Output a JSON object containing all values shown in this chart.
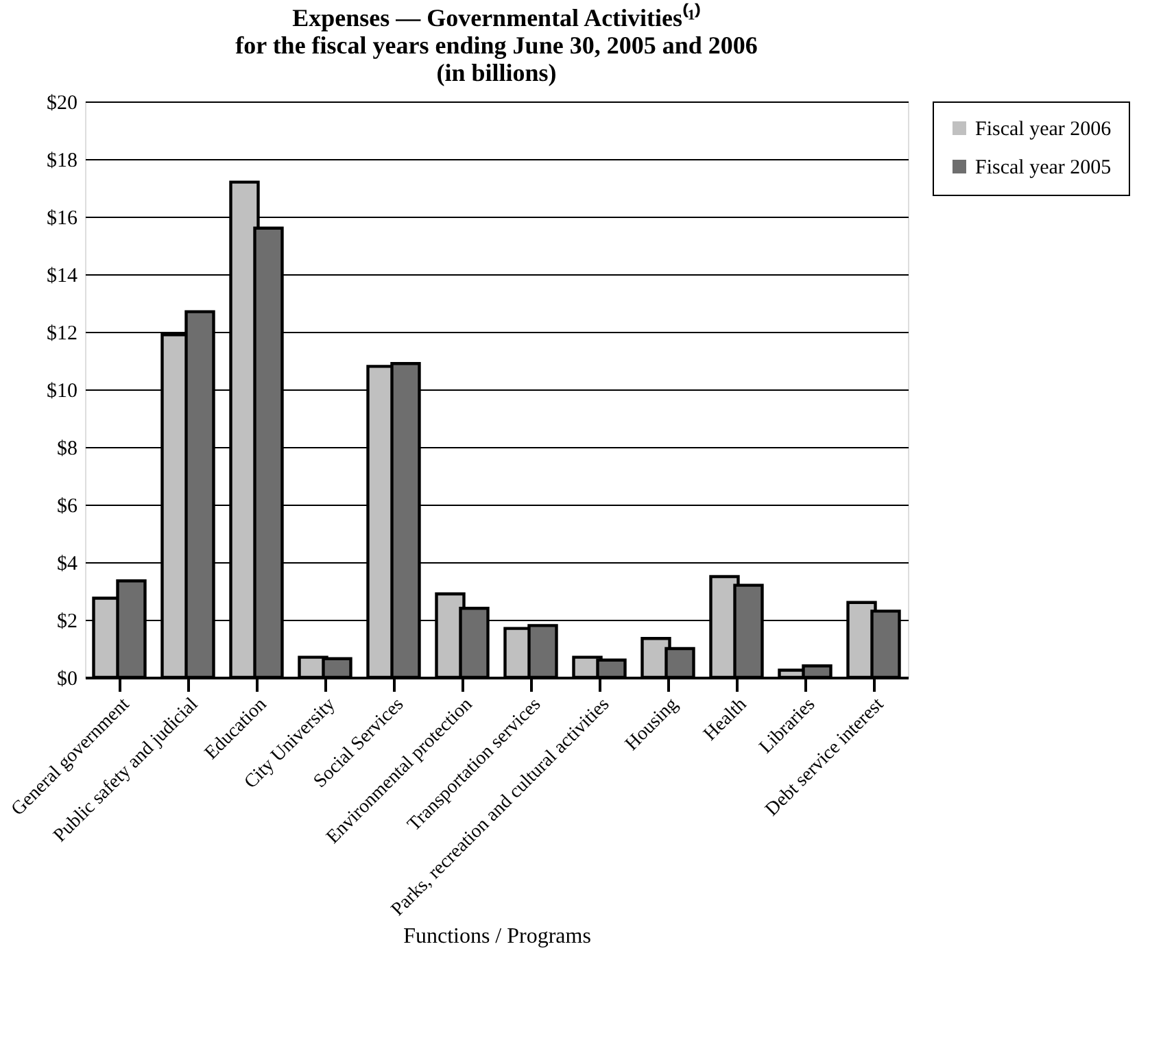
{
  "chart_data": {
    "type": "bar",
    "title": [
      "Expenses — Governmental Activities⁽¹⁾",
      "for the fiscal years ending June 30, 2005 and 2006",
      "(in billions)"
    ],
    "xlabel": "Functions / Programs",
    "categories": [
      "General government",
      "Public safety and judicial",
      "Education",
      "City University",
      "Social Services",
      "Environmental protection",
      "Transportation services",
      "Parks, recreation and cultural activities",
      "Housing",
      "Health",
      "Libraries",
      "Debt service interest"
    ],
    "series": [
      {
        "name": "Fiscal year 2006",
        "color": "#c0c0c0",
        "values": [
          2.75,
          11.9,
          17.2,
          0.7,
          10.8,
          2.9,
          1.7,
          0.7,
          1.35,
          3.5,
          0.25,
          2.6
        ]
      },
      {
        "name": "Fiscal year 2005",
        "color": "#6e6e6e",
        "values": [
          3.35,
          12.7,
          15.6,
          0.65,
          10.9,
          2.4,
          1.8,
          0.6,
          1.0,
          3.2,
          0.4,
          2.3
        ]
      }
    ],
    "ylim": [
      0,
      20
    ],
    "yticks": [
      {
        "value": 0,
        "label": "$0"
      },
      {
        "value": 2,
        "label": "$2"
      },
      {
        "value": 4,
        "label": "$4"
      },
      {
        "value": 6,
        "label": "$6"
      },
      {
        "value": 8,
        "label": "$8"
      },
      {
        "value": 10,
        "label": "$10"
      },
      {
        "value": 12,
        "label": "$12"
      },
      {
        "value": 14,
        "label": "$14"
      },
      {
        "value": 16,
        "label": "$16"
      },
      {
        "value": 18,
        "label": "$18"
      },
      {
        "value": 20,
        "label": "$20"
      }
    ],
    "grid": "y",
    "legend": "top right"
  }
}
